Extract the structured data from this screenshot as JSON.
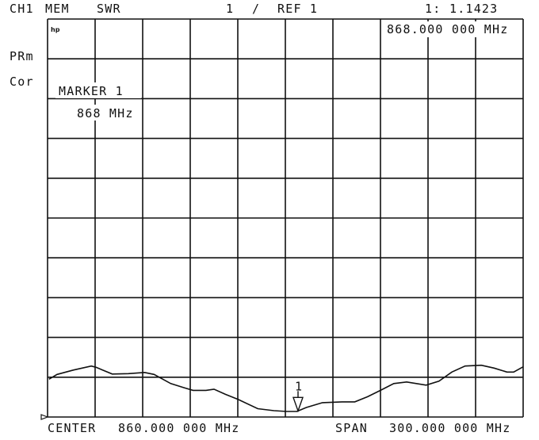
{
  "header": {
    "channel": "CH1",
    "mode": "MEM",
    "format": "SWR",
    "scale": "1",
    "scale_sep": "/",
    "ref": "REF 1",
    "marker_readout_label": "1:",
    "marker_readout_value": "1.1423"
  },
  "left_labels": {
    "prm": "PRm",
    "cor": "Cor"
  },
  "logo": "hp",
  "marker_frequency_readout": "868.000 000 MHz",
  "marker_box": {
    "title": "MARKER 1",
    "frequency": "868 MHz"
  },
  "footer": {
    "center_label": "CENTER",
    "center_value": "860.000 000 MHz",
    "span_label": "SPAN",
    "span_value": "300.000 000 MHz"
  },
  "chart_data": {
    "type": "line",
    "title": "",
    "xlabel": "",
    "ylabel": "",
    "x_unit": "MHz",
    "y_unit": "divisions above bottom graticule",
    "xlim": [
      710,
      1010
    ],
    "ylim": [
      0,
      10
    ],
    "x_divisions": 10,
    "y_divisions": 10,
    "grid": true,
    "reference_line_division": 1,
    "trace_color": "#111111",
    "series": [
      {
        "x": [
          710.9,
          716,
          726.2,
          737.6,
          740.6,
          750.8,
          761,
          771.2,
          777.2,
          787.7,
          795.8,
          801.8,
          809.9,
          815,
          822.2,
          830.3,
          842.6,
          852.8,
          860.9,
          867.2,
          873.2,
          883.4,
          895.7,
          903.8,
          911.9,
          920,
          928.4,
          936.5,
          948.8,
          956.9,
          965,
          973.4,
          983.6,
          991.7,
          999.8,
          1004,
          1010
        ],
        "y": [
          0.95,
          1.07,
          1.18,
          1.28,
          1.25,
          1.08,
          1.09,
          1.12,
          1.07,
          0.84,
          0.74,
          0.67,
          0.67,
          0.7,
          0.57,
          0.44,
          0.21,
          0.16,
          0.14,
          0.14,
          0.24,
          0.36,
          0.38,
          0.38,
          0.51,
          0.67,
          0.84,
          0.88,
          0.8,
          0.9,
          1.13,
          1.28,
          1.3,
          1.23,
          1.13,
          1.13,
          1.26
        ]
      }
    ],
    "markers": [
      {
        "label": "1",
        "x": 868,
        "value": "1.1423"
      }
    ]
  }
}
